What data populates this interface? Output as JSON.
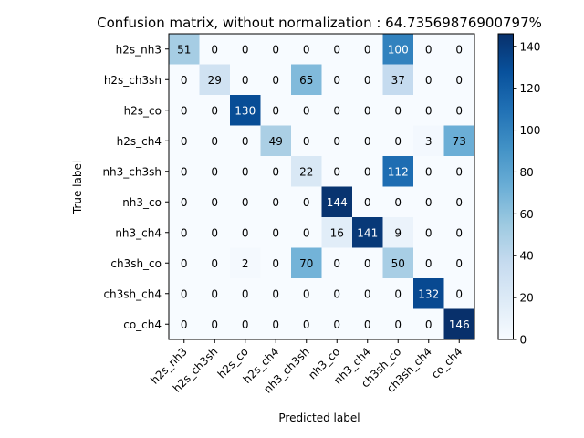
{
  "chart_data": {
    "type": "heatmap",
    "title": "Confusion matrix, without normalization : 64.73569876900797%",
    "xlabel": "Predicted label",
    "ylabel": "True label",
    "labels": [
      "h2s_nh3",
      "h2s_ch3sh",
      "h2s_co",
      "h2s_ch4",
      "nh3_ch3sh",
      "nh3_co",
      "nh3_ch4",
      "ch3sh_co",
      "ch3sh_ch4",
      "co_ch4"
    ],
    "matrix": [
      [
        51,
        0,
        0,
        0,
        0,
        0,
        0,
        100,
        0,
        0
      ],
      [
        0,
        29,
        0,
        0,
        65,
        0,
        0,
        37,
        0,
        0
      ],
      [
        0,
        0,
        130,
        0,
        0,
        0,
        0,
        0,
        0,
        0
      ],
      [
        0,
        0,
        0,
        49,
        0,
        0,
        0,
        0,
        3,
        73
      ],
      [
        0,
        0,
        0,
        0,
        22,
        0,
        0,
        112,
        0,
        0
      ],
      [
        0,
        0,
        0,
        0,
        0,
        144,
        0,
        0,
        0,
        0
      ],
      [
        0,
        0,
        0,
        0,
        0,
        16,
        141,
        9,
        0,
        0
      ],
      [
        0,
        0,
        2,
        0,
        70,
        0,
        0,
        50,
        0,
        0
      ],
      [
        0,
        0,
        0,
        0,
        0,
        0,
        0,
        0,
        132,
        0
      ],
      [
        0,
        0,
        0,
        0,
        0,
        0,
        0,
        0,
        0,
        146
      ]
    ],
    "colormap": "Blues",
    "colorbar": {
      "min": 0,
      "max": 146,
      "ticks": [
        0,
        20,
        40,
        60,
        80,
        100,
        120,
        140
      ]
    },
    "grid": false
  }
}
